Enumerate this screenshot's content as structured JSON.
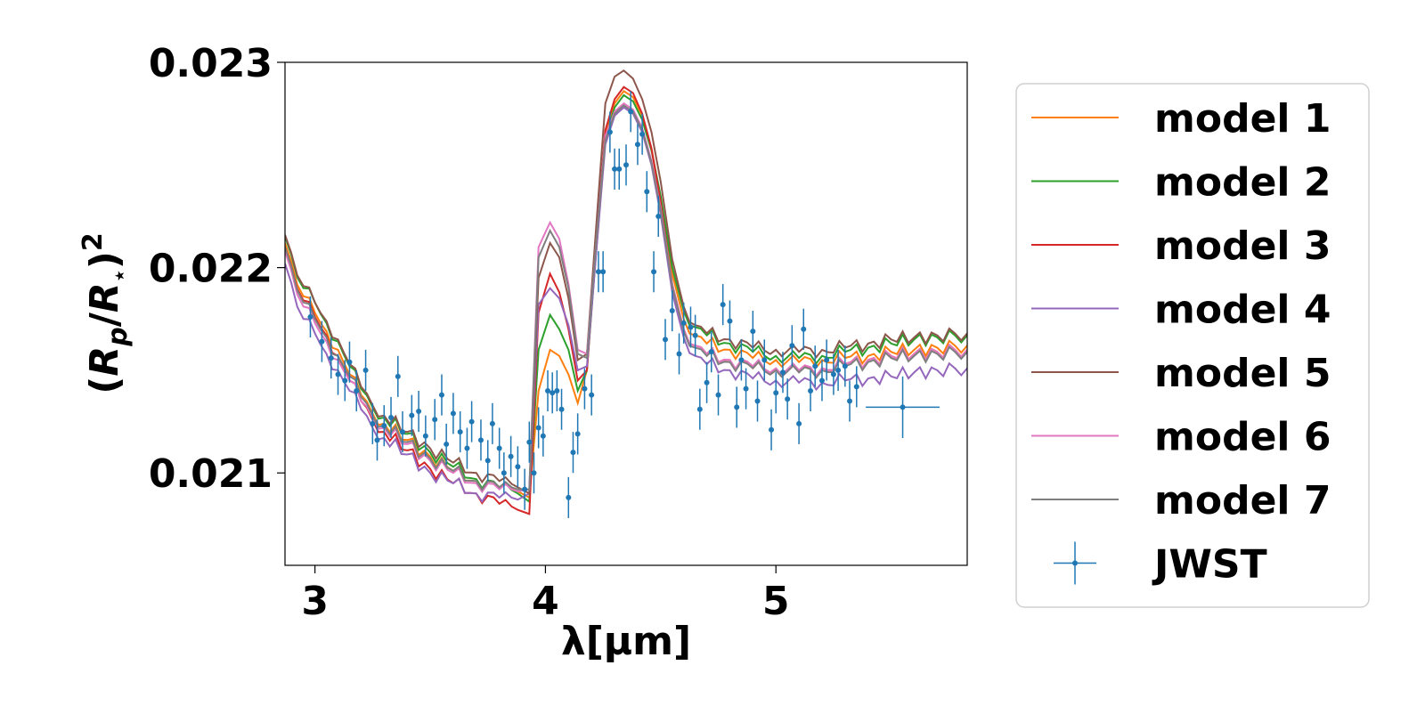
{
  "chart_data": {
    "type": "line",
    "xlabel": "λ[μm]",
    "ylabel": "(R_p/R_⋆)^2",
    "xlim": [
      2.87,
      5.83
    ],
    "ylim": [
      0.02055,
      0.023
    ],
    "xticks": [
      3,
      4,
      5
    ],
    "xtick_labels": [
      "3",
      "4",
      "5"
    ],
    "yticks": [
      0.021,
      0.022,
      0.023
    ],
    "ytick_labels": [
      "0.021",
      "0.022",
      "0.023"
    ],
    "grid": false,
    "legend_position": "outside-right",
    "colors": {
      "model 1": "#ff7f0e",
      "model 2": "#2ca02c",
      "model 3": "#d62728",
      "model 4": "#9467bd",
      "model 5": "#8c564b",
      "model 6": "#e377c2",
      "model 7": "#7f7f7f",
      "JWST": "#1f77b4"
    },
    "base_x": [
      2.87,
      2.95,
      3.0,
      3.05,
      3.1,
      3.15,
      3.2,
      3.25,
      3.3,
      3.4,
      3.5,
      3.6,
      3.7,
      3.8,
      3.88,
      3.93,
      3.97,
      4.02,
      4.06,
      4.1,
      4.14,
      4.18,
      4.22,
      4.26,
      4.3,
      4.34,
      4.38,
      4.42,
      4.46,
      4.5,
      4.55,
      4.6,
      4.65,
      4.7,
      4.8,
      4.9,
      5.0,
      5.1,
      5.2,
      5.3,
      5.4,
      5.5,
      5.6,
      5.7,
      5.83
    ],
    "series": [
      {
        "name": "model 1",
        "values": [
          0.02212,
          0.02186,
          0.02178,
          0.02169,
          0.0216,
          0.02148,
          0.02138,
          0.02129,
          0.02124,
          0.02116,
          0.02108,
          0.02101,
          0.02096,
          0.02093,
          0.02091,
          0.02088,
          0.0214,
          0.0216,
          0.02157,
          0.02148,
          0.02134,
          0.0215,
          0.0221,
          0.02265,
          0.0228,
          0.02286,
          0.02283,
          0.02274,
          0.02258,
          0.02234,
          0.02197,
          0.02175,
          0.02167,
          0.02163,
          0.0216,
          0.02156,
          0.02155,
          0.02154,
          0.02155,
          0.02156,
          0.02157,
          0.02159,
          0.0216,
          0.02161,
          0.02162
        ]
      },
      {
        "name": "model 2",
        "values": [
          0.02215,
          0.0219,
          0.02183,
          0.02173,
          0.02164,
          0.02152,
          0.02141,
          0.02132,
          0.02127,
          0.02119,
          0.0211,
          0.02103,
          0.02097,
          0.02093,
          0.0209,
          0.02086,
          0.0216,
          0.02177,
          0.0217,
          0.0216,
          0.0214,
          0.0215,
          0.02208,
          0.02263,
          0.02278,
          0.02284,
          0.02281,
          0.02272,
          0.02257,
          0.02235,
          0.022,
          0.02179,
          0.02171,
          0.02167,
          0.02163,
          0.02159,
          0.02157,
          0.02156,
          0.02157,
          0.02159,
          0.02161,
          0.02163,
          0.02165,
          0.02166,
          0.02167
        ]
      },
      {
        "name": "model 3",
        "values": [
          0.0221,
          0.02184,
          0.02176,
          0.02167,
          0.02157,
          0.02145,
          0.02135,
          0.02126,
          0.0212,
          0.02111,
          0.02102,
          0.02095,
          0.0209,
          0.02085,
          0.02082,
          0.0208,
          0.02178,
          0.02197,
          0.02188,
          0.0217,
          0.02145,
          0.0215,
          0.02212,
          0.02267,
          0.02282,
          0.02288,
          0.02285,
          0.02275,
          0.02258,
          0.02232,
          0.02192,
          0.0217,
          0.02162,
          0.02158,
          0.02155,
          0.02151,
          0.0215,
          0.02149,
          0.02151,
          0.02153,
          0.02155,
          0.02157,
          0.02158,
          0.02159,
          0.0216
        ]
      },
      {
        "name": "model 4",
        "values": [
          0.02202,
          0.02175,
          0.02168,
          0.02158,
          0.0215,
          0.0214,
          0.02131,
          0.02122,
          0.02117,
          0.02109,
          0.021,
          0.02095,
          0.0209,
          0.02088,
          0.02087,
          0.0209,
          0.02182,
          0.0219,
          0.02185,
          0.02172,
          0.0215,
          0.02152,
          0.02207,
          0.0226,
          0.02274,
          0.02278,
          0.02275,
          0.02266,
          0.0225,
          0.02226,
          0.02188,
          0.02166,
          0.02157,
          0.02153,
          0.0215,
          0.02146,
          0.02145,
          0.02144,
          0.02144,
          0.02145,
          0.02146,
          0.02147,
          0.02149,
          0.0215,
          0.02151
        ]
      },
      {
        "name": "model 5",
        "values": [
          0.02216,
          0.02191,
          0.02183,
          0.02174,
          0.02165,
          0.02153,
          0.02142,
          0.02133,
          0.02128,
          0.0212,
          0.02112,
          0.02105,
          0.021,
          0.02096,
          0.02093,
          0.0209,
          0.02195,
          0.02212,
          0.02205,
          0.02185,
          0.02155,
          0.02158,
          0.0222,
          0.0228,
          0.02293,
          0.02296,
          0.02292,
          0.02282,
          0.02266,
          0.02242,
          0.02204,
          0.02181,
          0.02172,
          0.02168,
          0.02165,
          0.02161,
          0.0216,
          0.02159,
          0.0216,
          0.02161,
          0.02163,
          0.02165,
          0.02166,
          0.02167,
          0.02168
        ]
      },
      {
        "name": "model 6",
        "values": [
          0.02208,
          0.02181,
          0.02173,
          0.02164,
          0.02155,
          0.02145,
          0.02135,
          0.02127,
          0.02122,
          0.02114,
          0.02106,
          0.021,
          0.02095,
          0.02092,
          0.02091,
          0.02092,
          0.0221,
          0.02222,
          0.02214,
          0.02192,
          0.0216,
          0.02158,
          0.02212,
          0.02264,
          0.02276,
          0.0228,
          0.02277,
          0.02268,
          0.02252,
          0.02229,
          0.02192,
          0.0217,
          0.02162,
          0.02158,
          0.02155,
          0.02152,
          0.02151,
          0.0215,
          0.02151,
          0.02153,
          0.02155,
          0.02157,
          0.02158,
          0.02159,
          0.0216
        ]
      },
      {
        "name": "model 7",
        "values": [
          0.0221,
          0.02183,
          0.02175,
          0.02166,
          0.02157,
          0.02147,
          0.02137,
          0.02128,
          0.02123,
          0.02115,
          0.02107,
          0.02101,
          0.02096,
          0.02093,
          0.02092,
          0.02092,
          0.02205,
          0.02218,
          0.0221,
          0.0219,
          0.02158,
          0.02156,
          0.02212,
          0.02262,
          0.02275,
          0.02279,
          0.02276,
          0.02267,
          0.02251,
          0.02228,
          0.02191,
          0.02169,
          0.02161,
          0.02157,
          0.02154,
          0.02151,
          0.0215,
          0.02149,
          0.0215,
          0.02152,
          0.02154,
          0.02156,
          0.02157,
          0.02158,
          0.02159
        ]
      }
    ],
    "jwst": {
      "name": "JWST",
      "points": [
        [
          2.98,
          0.02176,
          0.0001
        ],
        [
          3.03,
          0.02164,
          0.0001
        ],
        [
          3.07,
          0.02156,
          0.0001
        ],
        [
          3.1,
          0.02148,
          0.0001
        ],
        [
          3.13,
          0.02145,
          0.0001
        ],
        [
          3.15,
          0.02154,
          0.0001
        ],
        [
          3.18,
          0.0214,
          0.0001
        ],
        [
          3.22,
          0.0215,
          0.0001
        ],
        [
          3.25,
          0.02124,
          0.0001
        ],
        [
          3.27,
          0.02116,
          0.0001
        ],
        [
          3.3,
          0.02123,
          0.0001
        ],
        [
          3.33,
          0.02127,
          0.0001
        ],
        [
          3.36,
          0.02147,
          0.0001
        ],
        [
          3.38,
          0.0212,
          0.0001
        ],
        [
          3.42,
          0.02128,
          0.0001
        ],
        [
          3.45,
          0.0213,
          0.0001
        ],
        [
          3.48,
          0.02118,
          0.0001
        ],
        [
          3.52,
          0.02126,
          0.0001
        ],
        [
          3.55,
          0.02138,
          0.0001
        ],
        [
          3.57,
          0.02114,
          0.0001
        ],
        [
          3.6,
          0.02129,
          0.0001
        ],
        [
          3.63,
          0.0212,
          0.0001
        ],
        [
          3.66,
          0.02112,
          0.0001
        ],
        [
          3.68,
          0.02125,
          0.0001
        ],
        [
          3.72,
          0.02116,
          0.0001
        ],
        [
          3.75,
          0.02106,
          0.0001
        ],
        [
          3.77,
          0.02124,
          0.0001
        ],
        [
          3.8,
          0.02112,
          0.0001
        ],
        [
          3.82,
          0.021,
          0.0001
        ],
        [
          3.85,
          0.02108,
          0.0001
        ],
        [
          3.88,
          0.02103,
          0.0001
        ],
        [
          3.91,
          0.02092,
          0.0001
        ],
        [
          3.93,
          0.02115,
          0.0001
        ],
        [
          3.95,
          0.021,
          0.0001
        ],
        [
          3.97,
          0.02122,
          0.0001
        ],
        [
          3.99,
          0.02118,
          0.0001
        ],
        [
          4.01,
          0.0214,
          0.0001
        ],
        [
          4.03,
          0.02139,
          0.0001
        ],
        [
          4.05,
          0.0214,
          0.0001
        ],
        [
          4.07,
          0.02131,
          0.0001
        ],
        [
          4.1,
          0.02088,
          0.0001
        ],
        [
          4.12,
          0.0211,
          0.0001
        ],
        [
          4.14,
          0.02119,
          0.0001
        ],
        [
          4.17,
          0.02141,
          0.0001
        ],
        [
          4.2,
          0.02138,
          0.0001
        ],
        [
          4.23,
          0.02198,
          0.0001
        ],
        [
          4.25,
          0.02198,
          0.0001
        ],
        [
          4.28,
          0.02266,
          0.0001
        ],
        [
          4.3,
          0.02248,
          0.0001
        ],
        [
          4.32,
          0.02248,
          0.0001
        ],
        [
          4.35,
          0.0225,
          0.0001
        ],
        [
          4.37,
          0.02276,
          0.0001
        ],
        [
          4.4,
          0.0226,
          0.0001
        ],
        [
          4.42,
          0.02265,
          0.0001
        ],
        [
          4.44,
          0.02237,
          0.0001
        ],
        [
          4.47,
          0.02198,
          0.0001
        ],
        [
          4.49,
          0.02225,
          0.0001
        ],
        [
          4.52,
          0.02165,
          0.0001
        ],
        [
          4.55,
          0.02179,
          0.0001
        ],
        [
          4.58,
          0.02158,
          0.0001
        ],
        [
          4.6,
          0.02173,
          0.0001
        ],
        [
          4.63,
          0.02171,
          0.0001
        ],
        [
          4.65,
          0.02167,
          0.0001
        ],
        [
          4.67,
          0.02131,
          0.0001
        ],
        [
          4.7,
          0.02144,
          0.0001
        ],
        [
          4.72,
          0.02159,
          0.0001
        ],
        [
          4.75,
          0.02138,
          0.0001
        ],
        [
          4.77,
          0.02182,
          0.0001
        ],
        [
          4.8,
          0.02174,
          0.0001
        ],
        [
          4.83,
          0.02132,
          0.0001
        ],
        [
          4.85,
          0.02155,
          0.0001
        ],
        [
          4.87,
          0.02141,
          0.0001
        ],
        [
          4.9,
          0.02169,
          0.0001
        ],
        [
          4.92,
          0.02135,
          0.0001
        ],
        [
          4.95,
          0.02155,
          0.0001
        ],
        [
          4.98,
          0.02121,
          0.0001
        ],
        [
          5.0,
          0.02139,
          0.0001
        ],
        [
          5.03,
          0.02149,
          0.0001
        ],
        [
          5.05,
          0.02136,
          0.0001
        ],
        [
          5.07,
          0.02162,
          0.0001
        ],
        [
          5.1,
          0.02124,
          0.0001
        ],
        [
          5.12,
          0.0217,
          0.0001
        ],
        [
          5.15,
          0.0214,
          0.0001
        ],
        [
          5.17,
          0.02152,
          0.0001
        ],
        [
          5.2,
          0.02145,
          0.0001
        ],
        [
          5.22,
          0.02155,
          0.0001
        ],
        [
          5.25,
          0.02148,
          0.0001
        ],
        [
          5.27,
          0.0215,
          0.0001
        ],
        [
          5.3,
          0.02152,
          0.0001
        ],
        [
          5.32,
          0.02135,
          0.0001
        ],
        [
          5.35,
          0.02142,
          0.0001
        ]
      ],
      "wide_point": [
        5.55,
        0.02132,
        0.00015,
        0.16
      ]
    }
  },
  "legend": {
    "items": [
      {
        "label": "model 1",
        "kind": "line",
        "color": "#ff7f0e"
      },
      {
        "label": "model 2",
        "kind": "line",
        "color": "#2ca02c"
      },
      {
        "label": "model 3",
        "kind": "line",
        "color": "#d62728"
      },
      {
        "label": "model 4",
        "kind": "line",
        "color": "#9467bd"
      },
      {
        "label": "model 5",
        "kind": "line",
        "color": "#8c564b"
      },
      {
        "label": "model 6",
        "kind": "line",
        "color": "#e377c2"
      },
      {
        "label": "model 7",
        "kind": "line",
        "color": "#7f7f7f"
      },
      {
        "label": "JWST",
        "kind": "errorbar",
        "color": "#1f77b4"
      }
    ]
  }
}
